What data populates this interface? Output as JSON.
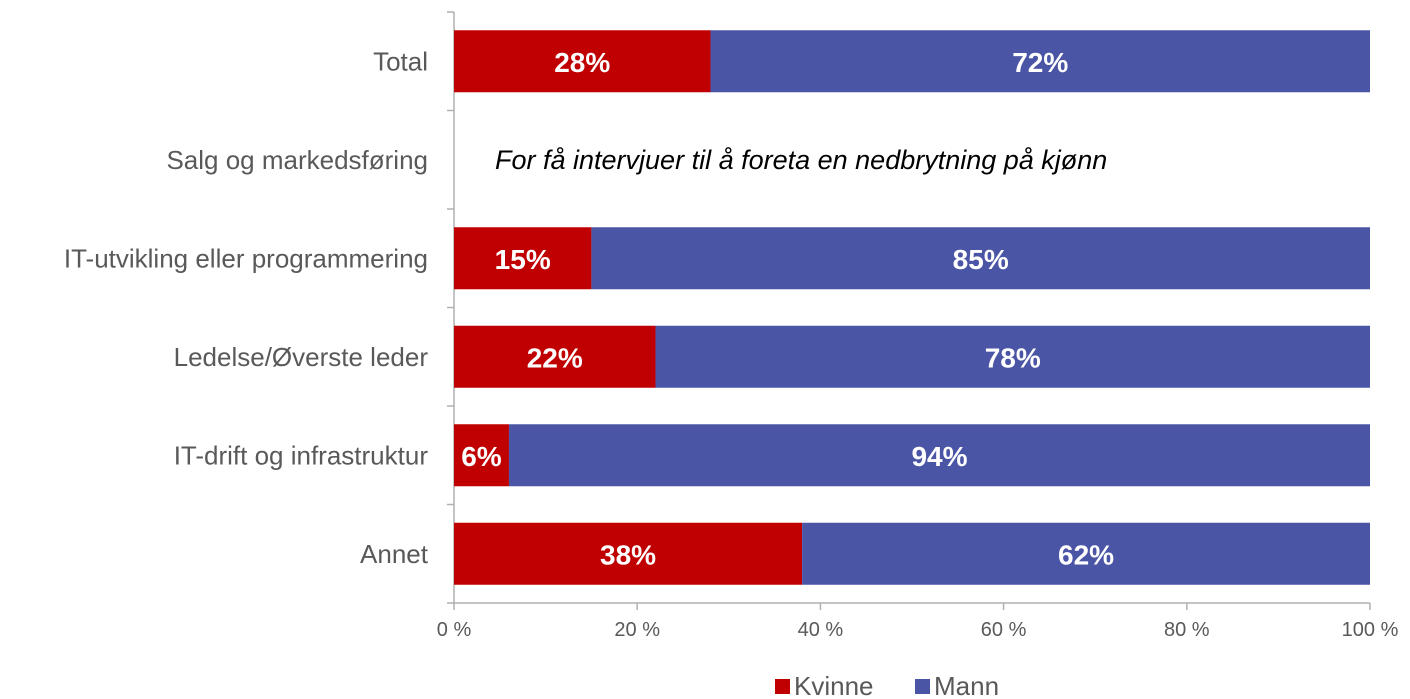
{
  "chart_data": {
    "type": "bar",
    "orientation": "horizontal",
    "stacked": true,
    "categories": [
      "Total",
      "Salg og markedsføring",
      "IT-utvikling eller programmering",
      "Ledelse/Øverste leder",
      "IT-drift og infrastruktur",
      "Annet"
    ],
    "series": [
      {
        "name": "Kvinne",
        "color": "#c00000",
        "values": [
          28,
          null,
          15,
          22,
          6,
          38
        ],
        "labels": [
          "28%",
          "",
          "15%",
          "22%",
          "6%",
          "38%"
        ]
      },
      {
        "name": "Mann",
        "color": "#4a55a6",
        "values": [
          72,
          null,
          85,
          78,
          94,
          62
        ],
        "labels": [
          "72%",
          "",
          "85%",
          "78%",
          "94%",
          "62%"
        ]
      }
    ],
    "annotation": {
      "category_index": 1,
      "text": "For få intervjuer til å foreta en nedbrytning på kjønn"
    },
    "xticks": [
      "0 %",
      "20 %",
      "40 %",
      "60 %",
      "80 %",
      "100 %"
    ],
    "xlim": [
      0,
      100
    ],
    "grid": false,
    "legend_position": "bottom"
  }
}
